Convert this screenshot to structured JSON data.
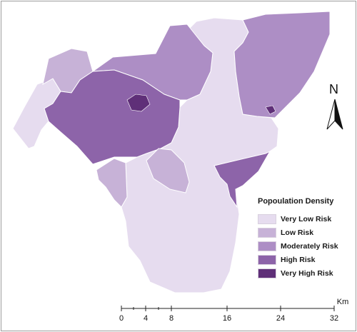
{
  "legend": {
    "title": "Popoulation Density",
    "items": [
      {
        "label": "Very Low Risk",
        "color": "#e6dcef"
      },
      {
        "label": "Low Risk",
        "color": "#c7b2d7"
      },
      {
        "label": "Moderately Risk",
        "color": "#ad8ec5"
      },
      {
        "label": "High Risk",
        "color": "#8d64a9"
      },
      {
        "label": "Very High Risk",
        "color": "#5f2f78"
      }
    ]
  },
  "north_arrow": {
    "letter": "N"
  },
  "scale_bar": {
    "unit": "Km",
    "ticks": [
      "0",
      "4",
      "8",
      "16",
      "24",
      "32"
    ]
  }
}
